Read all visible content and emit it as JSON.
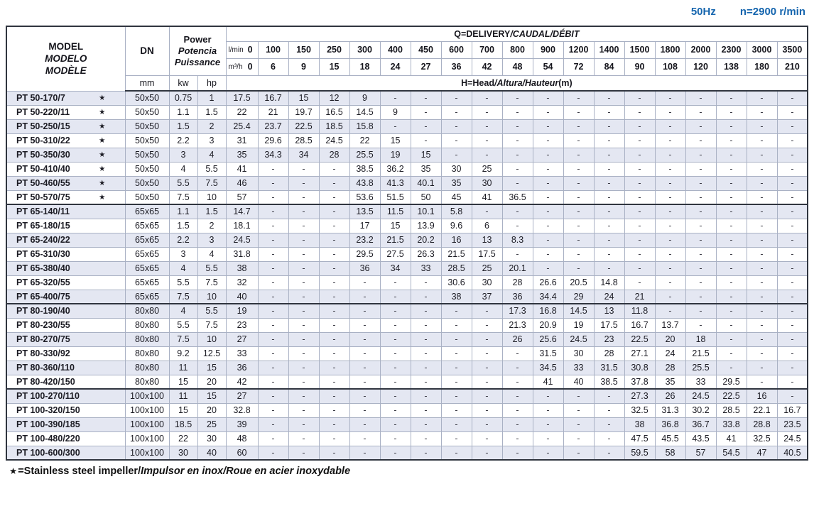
{
  "top": {
    "frequency": "50Hz",
    "speed": "n=2900 r/min"
  },
  "header": {
    "model_lines": [
      "MODEL",
      "MODELO",
      "MODÈLE"
    ],
    "dn": "DN",
    "dn_unit": "mm",
    "power_lines": [
      "Power",
      "Potencia",
      "Puissance"
    ],
    "kw": "kw",
    "hp": "hp",
    "delivery_title_main": "Q=DELIVERY",
    "delivery_title_intl": "/CAUDAL/DÉBIT",
    "lmin_label": "l/min",
    "m3h_label": "m³/h",
    "lmin_values": [
      "0",
      "100",
      "150",
      "250",
      "300",
      "400",
      "450",
      "600",
      "700",
      "800",
      "900",
      "1200",
      "1400",
      "1500",
      "1800",
      "2000",
      "2300",
      "3000",
      "3500"
    ],
    "m3h_values": [
      "0",
      "6",
      "9",
      "15",
      "18",
      "24",
      "27",
      "36",
      "42",
      "48",
      "54",
      "72",
      "84",
      "90",
      "108",
      "120",
      "138",
      "180",
      "210"
    ],
    "head_title_main": "H=Head",
    "head_title_intl": "/Altura/Hauteur",
    "head_title_unit": "(m)"
  },
  "rows": [
    {
      "model": "PT 50-170/7",
      "star": "★",
      "dn": "50x50",
      "kw": "0.75",
      "hp": "1",
      "group_start": false,
      "h": [
        "17.5",
        "16.7",
        "15",
        "12",
        "9",
        "-",
        "-",
        "-",
        "-",
        "-",
        "-",
        "-",
        "-",
        "-",
        "-",
        "-",
        "-",
        "-",
        "-"
      ]
    },
    {
      "model": "PT 50-220/11",
      "star": "★",
      "dn": "50x50",
      "kw": "1.1",
      "hp": "1.5",
      "group_start": false,
      "h": [
        "22",
        "21",
        "19.7",
        "16.5",
        "14.5",
        "9",
        "-",
        "-",
        "-",
        "-",
        "-",
        "-",
        "-",
        "-",
        "-",
        "-",
        "-",
        "-",
        "-"
      ]
    },
    {
      "model": "PT 50-250/15",
      "star": "★",
      "dn": "50x50",
      "kw": "1.5",
      "hp": "2",
      "group_start": false,
      "h": [
        "25.4",
        "23.7",
        "22.5",
        "18.5",
        "15.8",
        "-",
        "-",
        "-",
        "-",
        "-",
        "-",
        "-",
        "-",
        "-",
        "-",
        "-",
        "-",
        "-",
        "-"
      ]
    },
    {
      "model": "PT 50-310/22",
      "star": "★",
      "dn": "50x50",
      "kw": "2.2",
      "hp": "3",
      "group_start": false,
      "h": [
        "31",
        "29.6",
        "28.5",
        "24.5",
        "22",
        "15",
        "-",
        "-",
        "-",
        "-",
        "-",
        "-",
        "-",
        "-",
        "-",
        "-",
        "-",
        "-",
        "-"
      ]
    },
    {
      "model": "PT 50-350/30",
      "star": "★",
      "dn": "50x50",
      "kw": "3",
      "hp": "4",
      "group_start": false,
      "h": [
        "35",
        "34.3",
        "34",
        "28",
        "25.5",
        "19",
        "15",
        "-",
        "-",
        "-",
        "-",
        "-",
        "-",
        "-",
        "-",
        "-",
        "-",
        "-",
        "-"
      ]
    },
    {
      "model": "PT 50-410/40",
      "star": "★",
      "dn": "50x50",
      "kw": "4",
      "hp": "5.5",
      "group_start": false,
      "h": [
        "41",
        "-",
        "-",
        "-",
        "38.5",
        "36.2",
        "35",
        "30",
        "25",
        "-",
        "-",
        "-",
        "-",
        "-",
        "-",
        "-",
        "-",
        "-",
        "-"
      ]
    },
    {
      "model": "PT 50-460/55",
      "star": "★",
      "dn": "50x50",
      "kw": "5.5",
      "hp": "7.5",
      "group_start": false,
      "h": [
        "46",
        "-",
        "-",
        "-",
        "43.8",
        "41.3",
        "40.1",
        "35",
        "30",
        "-",
        "-",
        "-",
        "-",
        "-",
        "-",
        "-",
        "-",
        "-",
        "-"
      ]
    },
    {
      "model": "PT 50-570/75",
      "star": "★",
      "dn": "50x50",
      "kw": "7.5",
      "hp": "10",
      "group_start": false,
      "h": [
        "57",
        "-",
        "-",
        "-",
        "53.6",
        "51.5",
        "50",
        "45",
        "41",
        "36.5",
        "-",
        "-",
        "-",
        "-",
        "-",
        "-",
        "-",
        "-",
        "-"
      ]
    },
    {
      "model": "PT 65-140/11",
      "star": "",
      "dn": "65x65",
      "kw": "1.1",
      "hp": "1.5",
      "group_start": true,
      "h": [
        "14.7",
        "-",
        "-",
        "-",
        "13.5",
        "11.5",
        "10.1",
        "5.8",
        "-",
        "-",
        "-",
        "-",
        "-",
        "-",
        "-",
        "-",
        "-",
        "-",
        "-"
      ]
    },
    {
      "model": "PT 65-180/15",
      "star": "",
      "dn": "65x65",
      "kw": "1.5",
      "hp": "2",
      "group_start": false,
      "h": [
        "18.1",
        "-",
        "-",
        "-",
        "17",
        "15",
        "13.9",
        "9.6",
        "6",
        "-",
        "-",
        "-",
        "-",
        "-",
        "-",
        "-",
        "-",
        "-",
        "-"
      ]
    },
    {
      "model": "PT 65-240/22",
      "star": "",
      "dn": "65x65",
      "kw": "2.2",
      "hp": "3",
      "group_start": false,
      "h": [
        "24.5",
        "-",
        "-",
        "-",
        "23.2",
        "21.5",
        "20.2",
        "16",
        "13",
        "8.3",
        "-",
        "-",
        "-",
        "-",
        "-",
        "-",
        "-",
        "-",
        "-"
      ]
    },
    {
      "model": "PT 65-310/30",
      "star": "",
      "dn": "65x65",
      "kw": "3",
      "hp": "4",
      "group_start": false,
      "h": [
        "31.8",
        "-",
        "-",
        "-",
        "29.5",
        "27.5",
        "26.3",
        "21.5",
        "17.5",
        "-",
        "-",
        "-",
        "-",
        "-",
        "-",
        "-",
        "-",
        "-",
        "-"
      ]
    },
    {
      "model": "PT 65-380/40",
      "star": "",
      "dn": "65x65",
      "kw": "4",
      "hp": "5.5",
      "group_start": false,
      "h": [
        "38",
        "-",
        "-",
        "-",
        "36",
        "34",
        "33",
        "28.5",
        "25",
        "20.1",
        "-",
        "-",
        "-",
        "-",
        "-",
        "-",
        "-",
        "-",
        "-"
      ]
    },
    {
      "model": "PT 65-320/55",
      "star": "",
      "dn": "65x65",
      "kw": "5.5",
      "hp": "7.5",
      "group_start": false,
      "h": [
        "32",
        "-",
        "-",
        "-",
        "-",
        "-",
        "-",
        "30.6",
        "30",
        "28",
        "26.6",
        "20.5",
        "14.8",
        "-",
        "-",
        "-",
        "-",
        "-",
        "-"
      ]
    },
    {
      "model": "PT 65-400/75",
      "star": "",
      "dn": "65x65",
      "kw": "7.5",
      "hp": "10",
      "group_start": false,
      "h": [
        "40",
        "-",
        "-",
        "-",
        "-",
        "-",
        "-",
        "38",
        "37",
        "36",
        "34.4",
        "29",
        "24",
        "21",
        "-",
        "-",
        "-",
        "-",
        "-"
      ]
    },
    {
      "model": "PT 80-190/40",
      "star": "",
      "dn": "80x80",
      "kw": "4",
      "hp": "5.5",
      "group_start": true,
      "h": [
        "19",
        "-",
        "-",
        "-",
        "-",
        "-",
        "-",
        "-",
        "-",
        "17.3",
        "16.8",
        "14.5",
        "13",
        "11.8",
        "-",
        "-",
        "-",
        "-",
        "-"
      ]
    },
    {
      "model": "PT 80-230/55",
      "star": "",
      "dn": "80x80",
      "kw": "5.5",
      "hp": "7.5",
      "group_start": false,
      "h": [
        "23",
        "-",
        "-",
        "-",
        "-",
        "-",
        "-",
        "-",
        "-",
        "21.3",
        "20.9",
        "19",
        "17.5",
        "16.7",
        "13.7",
        "-",
        "-",
        "-",
        "-"
      ]
    },
    {
      "model": "PT 80-270/75",
      "star": "",
      "dn": "80x80",
      "kw": "7.5",
      "hp": "10",
      "group_start": false,
      "h": [
        "27",
        "-",
        "-",
        "-",
        "-",
        "-",
        "-",
        "-",
        "-",
        "26",
        "25.6",
        "24.5",
        "23",
        "22.5",
        "20",
        "18",
        "-",
        "-",
        "-"
      ]
    },
    {
      "model": "PT 80-330/92",
      "star": "",
      "dn": "80x80",
      "kw": "9.2",
      "hp": "12.5",
      "group_start": false,
      "h": [
        "33",
        "-",
        "-",
        "-",
        "-",
        "-",
        "-",
        "-",
        "-",
        "-",
        "31.5",
        "30",
        "28",
        "27.1",
        "24",
        "21.5",
        "-",
        "-",
        "-"
      ]
    },
    {
      "model": "PT 80-360/110",
      "star": "",
      "dn": "80x80",
      "kw": "11",
      "hp": "15",
      "group_start": false,
      "h": [
        "36",
        "-",
        "-",
        "-",
        "-",
        "-",
        "-",
        "-",
        "-",
        "-",
        "34.5",
        "33",
        "31.5",
        "30.8",
        "28",
        "25.5",
        "-",
        "-",
        "-"
      ]
    },
    {
      "model": "PT 80-420/150",
      "star": "",
      "dn": "80x80",
      "kw": "15",
      "hp": "20",
      "group_start": false,
      "h": [
        "42",
        "-",
        "-",
        "-",
        "-",
        "-",
        "-",
        "-",
        "-",
        "-",
        "41",
        "40",
        "38.5",
        "37.8",
        "35",
        "33",
        "29.5",
        "-",
        "-"
      ]
    },
    {
      "model": "PT 100-270/110",
      "star": "",
      "dn": "100x100",
      "kw": "11",
      "hp": "15",
      "group_start": true,
      "h": [
        "27",
        "-",
        "-",
        "-",
        "-",
        "-",
        "-",
        "-",
        "-",
        "-",
        "-",
        "-",
        "-",
        "27.3",
        "26",
        "24.5",
        "22.5",
        "16",
        "-"
      ]
    },
    {
      "model": "PT 100-320/150",
      "star": "",
      "dn": "100x100",
      "kw": "15",
      "hp": "20",
      "group_start": false,
      "h": [
        "32.8",
        "-",
        "-",
        "-",
        "-",
        "-",
        "-",
        "-",
        "-",
        "-",
        "-",
        "-",
        "-",
        "32.5",
        "31.3",
        "30.2",
        "28.5",
        "22.1",
        "16.7"
      ]
    },
    {
      "model": "PT 100-390/185",
      "star": "",
      "dn": "100x100",
      "kw": "18.5",
      "hp": "25",
      "group_start": false,
      "h": [
        "39",
        "-",
        "-",
        "-",
        "-",
        "-",
        "-",
        "-",
        "-",
        "-",
        "-",
        "-",
        "-",
        "38",
        "36.8",
        "36.7",
        "33.8",
        "28.8",
        "23.5"
      ]
    },
    {
      "model": "PT 100-480/220",
      "star": "",
      "dn": "100x100",
      "kw": "22",
      "hp": "30",
      "group_start": false,
      "h": [
        "48",
        "-",
        "-",
        "-",
        "-",
        "-",
        "-",
        "-",
        "-",
        "-",
        "-",
        "-",
        "-",
        "47.5",
        "45.5",
        "43.5",
        "41",
        "32.5",
        "24.5"
      ]
    },
    {
      "model": "PT 100-600/300",
      "star": "",
      "dn": "100x100",
      "kw": "30",
      "hp": "40",
      "group_start": false,
      "h": [
        "60",
        "-",
        "-",
        "-",
        "-",
        "-",
        "-",
        "-",
        "-",
        "-",
        "-",
        "-",
        "-",
        "59.5",
        "58",
        "57",
        "54.5",
        "47",
        "40.5"
      ]
    }
  ],
  "footnote": {
    "star": "★",
    "text_main": "=Stainless steel impeller/",
    "text_intl": "Impulsor en inox/Roue en acier inoxydable"
  }
}
